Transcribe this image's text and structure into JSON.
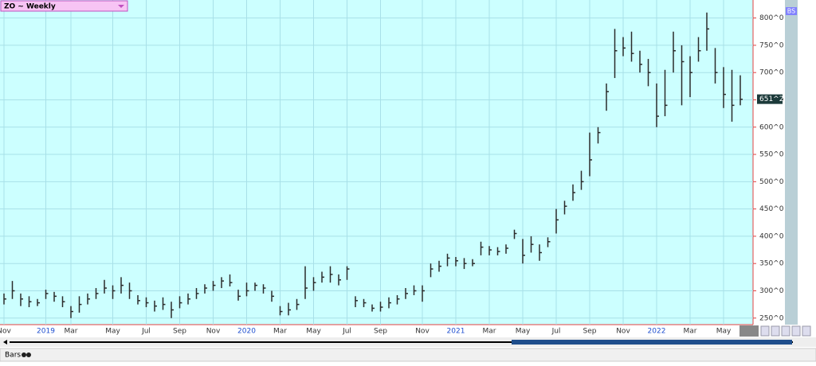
{
  "header": {
    "title": "ZO ~ Weekly",
    "badge": "BS"
  },
  "chart_data": {
    "type": "hlc-bar",
    "color": "#2b2b2b",
    "grid": true,
    "categories": [
      "Nov",
      null,
      null,
      null,
      null,
      "2019",
      null,
      null,
      "Mar",
      null,
      null,
      null,
      null,
      "May",
      null,
      null,
      null,
      "Jul",
      null,
      null,
      null,
      "Sep",
      null,
      null,
      null,
      "Nov",
      null,
      null,
      null,
      "2020",
      null,
      null,
      null,
      "Mar",
      null,
      null,
      null,
      "May",
      null,
      null,
      null,
      "Jul",
      null,
      null,
      null,
      "Sep",
      null,
      null,
      null,
      null,
      "Nov",
      null,
      null,
      null,
      "2021",
      null,
      null,
      null,
      "Mar",
      null,
      null,
      null,
      "May",
      null,
      null,
      null,
      "Jul",
      null,
      null,
      null,
      "Sep",
      null,
      null,
      null,
      "Nov",
      null,
      null,
      null,
      "2022",
      null,
      null,
      null,
      "Mar",
      null,
      null,
      null,
      "May",
      null,
      null
    ],
    "high": [
      295,
      318,
      295,
      290,
      285,
      302,
      298,
      290,
      272,
      290,
      295,
      305,
      320,
      310,
      325,
      315,
      292,
      288,
      282,
      288,
      280,
      290,
      295,
      305,
      312,
      318,
      325,
      330,
      302,
      315,
      315,
      312,
      300,
      272,
      278,
      285,
      345,
      325,
      335,
      345,
      330,
      345,
      290,
      285,
      275,
      280,
      288,
      292,
      305,
      310,
      310,
      350,
      355,
      368,
      362,
      360,
      358,
      390,
      382,
      380,
      385,
      412,
      395,
      400,
      385,
      398,
      450,
      465,
      495,
      520,
      590,
      600,
      680,
      780,
      765,
      775,
      740,
      725,
      680,
      705,
      775,
      750,
      730,
      765,
      810,
      745,
      710,
      705,
      695
    ],
    "low": [
      275,
      285,
      272,
      270,
      272,
      285,
      280,
      270,
      250,
      260,
      275,
      285,
      295,
      285,
      295,
      285,
      275,
      270,
      262,
      265,
      250,
      268,
      275,
      285,
      295,
      300,
      305,
      308,
      282,
      290,
      300,
      295,
      280,
      255,
      255,
      265,
      285,
      300,
      315,
      315,
      310,
      320,
      270,
      270,
      262,
      262,
      268,
      275,
      285,
      292,
      280,
      325,
      335,
      345,
      345,
      340,
      345,
      365,
      365,
      365,
      368,
      395,
      350,
      370,
      355,
      380,
      405,
      440,
      465,
      485,
      510,
      570,
      630,
      690,
      730,
      720,
      700,
      675,
      600,
      620,
      700,
      640,
      655,
      720,
      740,
      680,
      635,
      610,
      640
    ],
    "close": [
      285,
      300,
      285,
      280,
      278,
      295,
      290,
      280,
      262,
      275,
      285,
      295,
      305,
      300,
      310,
      300,
      282,
      278,
      272,
      275,
      265,
      278,
      285,
      295,
      305,
      310,
      318,
      315,
      290,
      300,
      310,
      305,
      290,
      262,
      265,
      275,
      305,
      315,
      325,
      330,
      320,
      340,
      282,
      278,
      268,
      270,
      278,
      285,
      295,
      300,
      300,
      340,
      345,
      360,
      355,
      350,
      350,
      380,
      375,
      372,
      378,
      405,
      365,
      385,
      370,
      390,
      430,
      455,
      480,
      500,
      540,
      590,
      665,
      740,
      745,
      735,
      715,
      700,
      620,
      640,
      740,
      720,
      700,
      740,
      780,
      700,
      660,
      640,
      651
    ],
    "ylim": [
      238,
      833
    ],
    "yticks": [
      {
        "value": 250,
        "label": "250^0"
      },
      {
        "value": 300,
        "label": "300^0"
      },
      {
        "value": 350,
        "label": "350^0"
      },
      {
        "value": 400,
        "label": "400^0"
      },
      {
        "value": 450,
        "label": "450^0"
      },
      {
        "value": 500,
        "label": "500^0"
      },
      {
        "value": 550,
        "label": "550^0"
      },
      {
        "value": 600,
        "label": "600^0"
      },
      {
        "value": 650,
        "label": "650^0"
      },
      {
        "value": 700,
        "label": "700^0"
      },
      {
        "value": 750,
        "label": "750^0"
      },
      {
        "value": 800,
        "label": "800^0"
      }
    ],
    "last_price": {
      "value": 651.25,
      "label": "651^2"
    }
  },
  "footer": {
    "chart_style": "Bars"
  }
}
